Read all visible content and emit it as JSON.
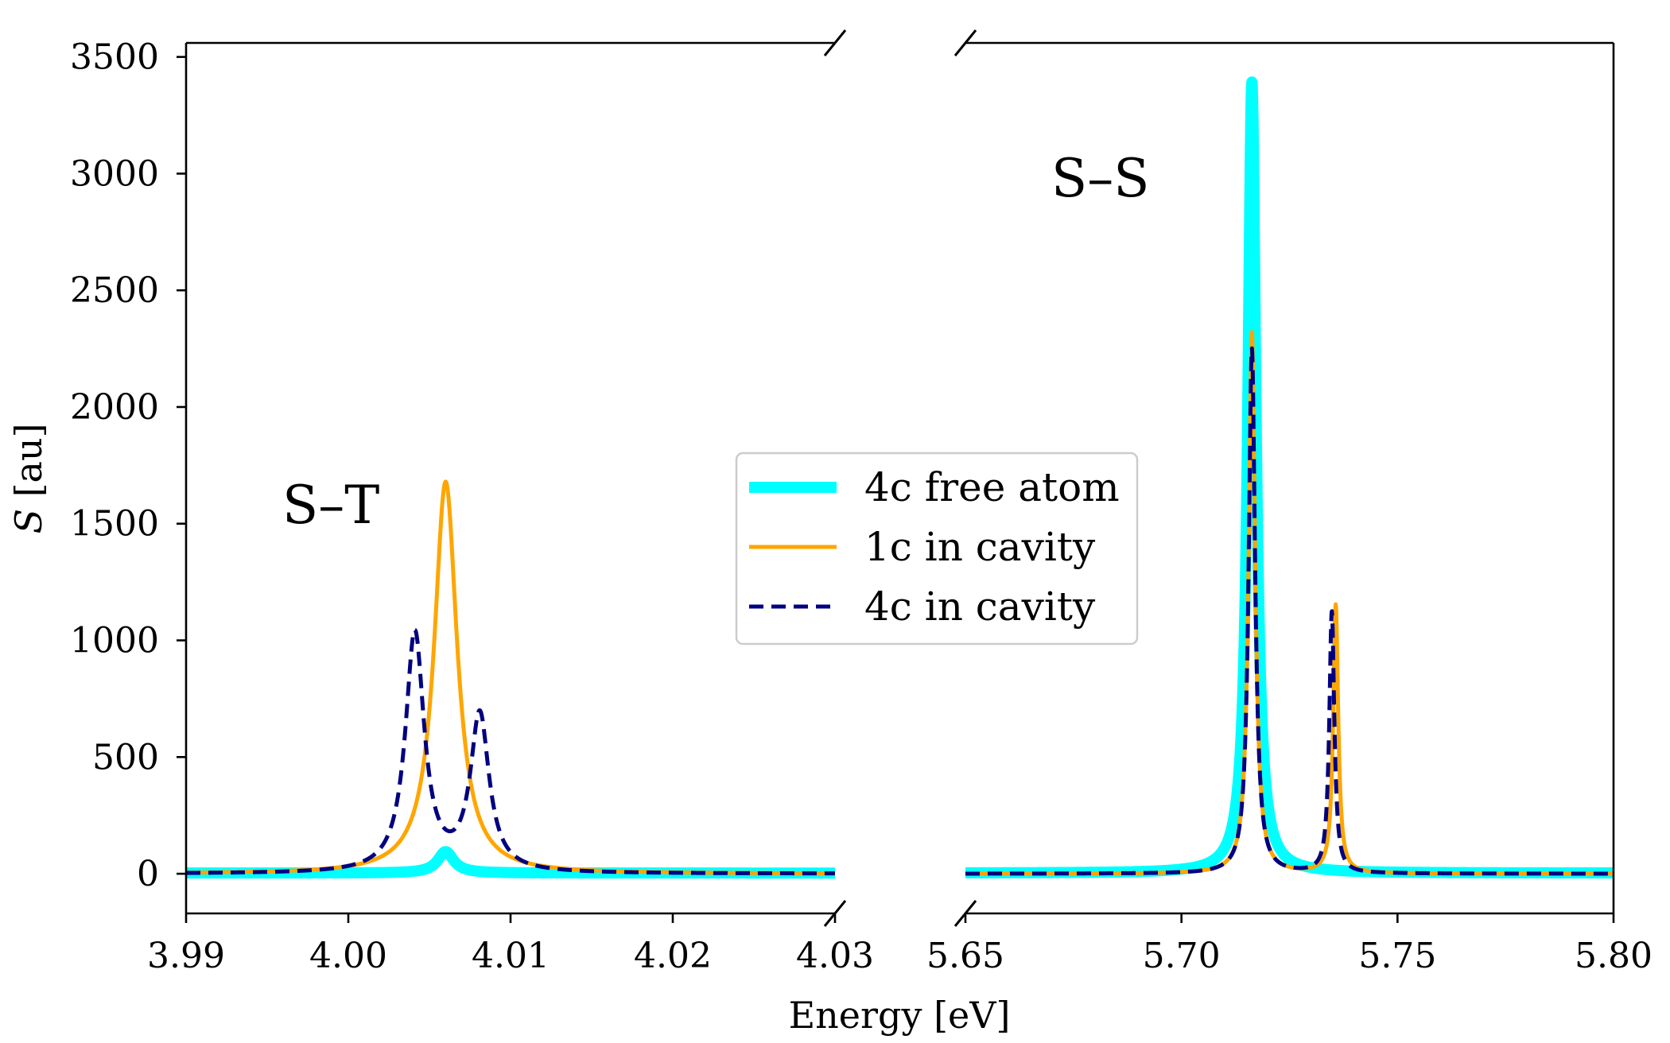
{
  "chart_data": {
    "type": "line",
    "title": "",
    "xlabel": "Energy [eV]",
    "ylabel_symbol": "S",
    "ylabel_unit": "[au]",
    "ylim": [
      -170,
      3560
    ],
    "yticks": [
      0,
      500,
      1000,
      1500,
      2000,
      2500,
      3000,
      3500
    ],
    "ytick_labels": [
      "0",
      "500",
      "1000",
      "1500",
      "2000",
      "2500",
      "3000",
      "3500"
    ],
    "broken_x_axis": true,
    "panels": [
      {
        "name": "left",
        "xlim": [
          3.99,
          4.03
        ],
        "xticks": [
          3.99,
          4.0,
          4.01,
          4.02,
          4.03
        ],
        "xtick_labels": [
          "3.99",
          "4.00",
          "4.01",
          "4.02",
          "4.03"
        ],
        "annotation": "S–T",
        "peaks": {
          "4c free atom": [
            {
              "x": 4.006,
              "h": 92,
              "w": 0.0006
            }
          ],
          "1c in cavity": [
            {
              "x": 4.006,
              "h": 1680,
              "w": 0.00085
            }
          ],
          "4c in cavity": [
            {
              "x": 4.0041,
              "h": 1025,
              "w": 0.0007
            },
            {
              "x": 4.0081,
              "h": 670,
              "w": 0.0007
            }
          ]
        }
      },
      {
        "name": "right",
        "xlim": [
          5.65,
          5.8
        ],
        "xticks": [
          5.65,
          5.7,
          5.75,
          5.8
        ],
        "xtick_labels": [
          "5.65",
          "5.70",
          "5.75",
          "5.80"
        ],
        "annotation": "S–S",
        "peaks": {
          "4c free atom": [
            {
              "x": 5.7163,
              "h": 3390,
              "w": 0.00115
            }
          ],
          "1c in cavity": [
            {
              "x": 5.7163,
              "h": 2320,
              "w": 0.0009
            },
            {
              "x": 5.7357,
              "h": 1150,
              "w": 0.0007
            }
          ],
          "4c in cavity": [
            {
              "x": 5.7163,
              "h": 2250,
              "w": 0.0009
            },
            {
              "x": 5.7348,
              "h": 1120,
              "w": 0.0007
            }
          ]
        }
      }
    ],
    "series": [
      {
        "name": "4c free atom",
        "color": "#00FFFF",
        "style": "solid-thick",
        "baseline": 3
      },
      {
        "name": "1c in cavity",
        "color": "#FFA500",
        "style": "solid",
        "baseline": 0
      },
      {
        "name": "4c in cavity",
        "color": "#000080",
        "style": "dashed",
        "baseline": 0
      }
    ],
    "legend": {
      "position": "center",
      "entries": [
        "4c free atom",
        "1c in cavity",
        "4c in cavity"
      ]
    }
  }
}
